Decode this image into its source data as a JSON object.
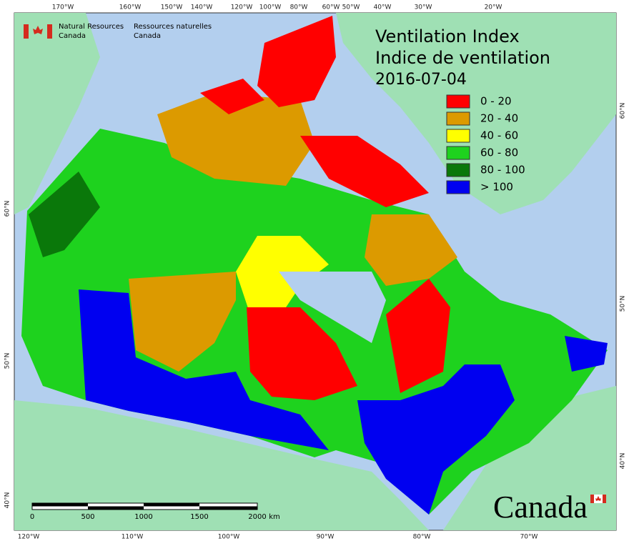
{
  "header": {
    "agency_en": [
      "Natural Resources",
      "Canada"
    ],
    "agency_fr": [
      "Ressources naturelles",
      "Canada"
    ]
  },
  "title": {
    "line1": "Ventilation Index",
    "line2": "Indice de ventilation",
    "date": "2016-07-04"
  },
  "legend": [
    {
      "label": "0 - 20",
      "color": "#ff0000"
    },
    {
      "label": "20 - 40",
      "color": "#dc9a00"
    },
    {
      "label": "40 - 60",
      "color": "#ffff00"
    },
    {
      "label": "60 - 80",
      "color": "#1ed21e"
    },
    {
      "label": "80 - 100",
      "color": "#0a780a"
    },
    {
      "label": "> 100",
      "color": "#0000f0"
    }
  ],
  "graticule": {
    "top": [
      "170°W",
      "160°W",
      "150°W",
      "140°W",
      "120°W",
      "100°W",
      "80°W",
      "60°W",
      "50°W",
      "40°W",
      "30°W",
      "20°W"
    ],
    "bottom": [
      "120°W",
      "110°W",
      "100°W",
      "90°W",
      "80°W",
      "70°W"
    ],
    "left": [
      "60°N",
      "50°N",
      "40°N"
    ],
    "right": [
      "60°N",
      "50°N",
      "40°N"
    ]
  },
  "scale_bar": {
    "ticks": [
      "0",
      "500",
      "1000",
      "1500",
      "2000",
      "km"
    ]
  },
  "wordmark": "Canada"
}
